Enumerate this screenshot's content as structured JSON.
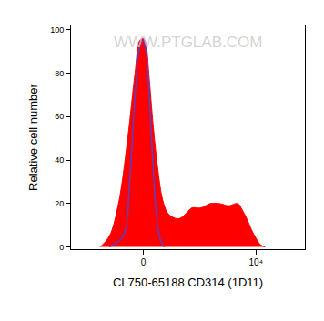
{
  "chart_data": {
    "type": "histogram",
    "x_label": "CL750-65188 CD314 (1D11)",
    "y_label": "Relative cell number",
    "annotations": [
      {
        "text": "WWW.PTGLAB.COM"
      }
    ],
    "xlim": [
      -1500,
      100000
    ],
    "xticks": [
      0,
      {
        "value": 10000,
        "label": "10⁴"
      }
    ],
    "ylim": [
      -1,
      102
    ],
    "yticks": [
      0,
      20,
      40,
      60,
      80,
      100
    ],
    "grid": false,
    "series": [
      {
        "type": "area",
        "color": "#ff0000",
        "x": [
          -373,
          -236,
          -145,
          -80,
          -40,
          -17,
          0,
          13,
          26,
          49,
          75,
          103,
          137,
          177,
          248,
          311,
          390,
          486,
          753,
          1160,
          1790,
          2750,
          4240,
          5260,
          6520,
          8090,
          10040,
          12450,
          15440
        ],
        "values": [
          0,
          5,
          20,
          50,
          80,
          95,
          96,
          93,
          80,
          55,
          35,
          22,
          16,
          14,
          13,
          14,
          16,
          18,
          18,
          20,
          20,
          19,
          20,
          17,
          13,
          8,
          4,
          1,
          0
        ]
      },
      {
        "type": "line",
        "color": "#5b3fc4",
        "x": [
          -236,
          -110,
          -69,
          -40,
          -17,
          0,
          13,
          31,
          49,
          69,
          91,
          116
        ],
        "values": [
          0,
          5,
          30,
          70,
          92,
          95,
          90,
          65,
          35,
          12,
          3,
          0
        ]
      }
    ]
  }
}
